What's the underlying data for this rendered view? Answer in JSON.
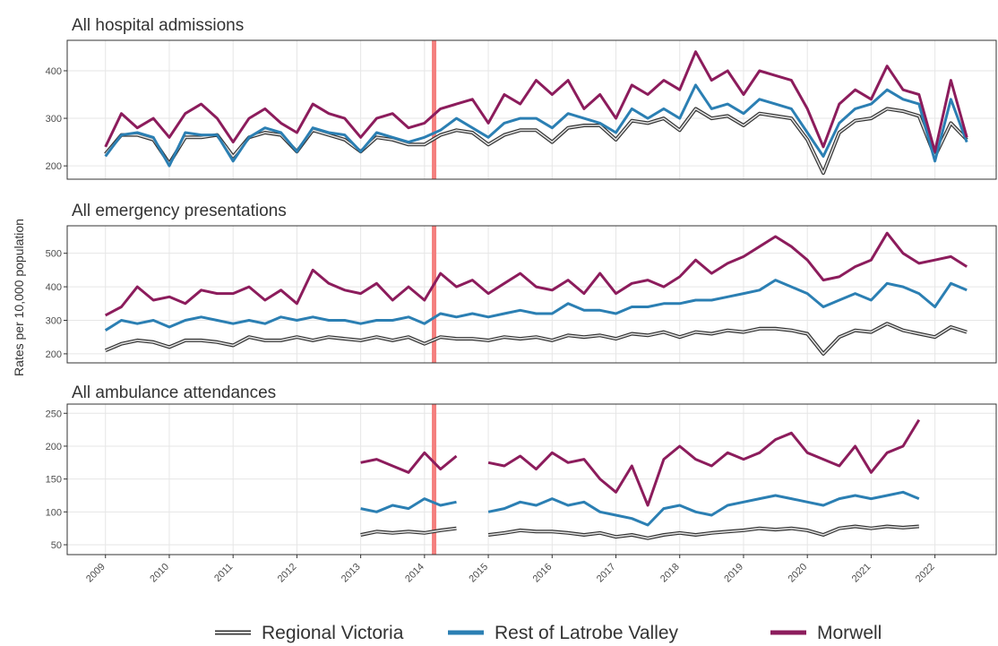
{
  "ylabel": "Rates per 10,000 population",
  "vline": {
    "x": 2014.15,
    "color": "#f4807f"
  },
  "chart_data": [
    {
      "type": "line",
      "title": "All hospital admissions",
      "x": [
        2009,
        2009.25,
        2009.5,
        2009.75,
        2010,
        2010.25,
        2010.5,
        2010.75,
        2011,
        2011.25,
        2011.5,
        2011.75,
        2012,
        2012.25,
        2012.5,
        2012.75,
        2013,
        2013.25,
        2013.5,
        2013.75,
        2014,
        2014.25,
        2014.5,
        2014.75,
        2015,
        2015.25,
        2015.5,
        2015.75,
        2016,
        2016.25,
        2016.5,
        2016.75,
        2017,
        2017.25,
        2017.5,
        2017.75,
        2018,
        2018.25,
        2018.5,
        2018.75,
        2019,
        2019.25,
        2019.5,
        2019.75,
        2020,
        2020.25,
        2020.5,
        2020.75,
        2021,
        2021.25,
        2021.5,
        2021.75,
        2022,
        2022.25,
        2022.5
      ],
      "xlim": [
        2008.4,
        2022.96
      ],
      "xticks": [
        2009,
        2010,
        2011,
        2012,
        2013,
        2014,
        2015,
        2016,
        2017,
        2018,
        2019,
        2020,
        2021,
        2022
      ],
      "ylim": [
        172,
        464
      ],
      "yticks": [
        200,
        300,
        400
      ],
      "grid": true,
      "series": [
        {
          "name": "Regional Victoria",
          "color": "#6b6b6b",
          "style": "double",
          "values": [
            225,
            265,
            265,
            255,
            205,
            260,
            260,
            265,
            220,
            260,
            270,
            265,
            230,
            275,
            265,
            255,
            230,
            260,
            255,
            245,
            245,
            265,
            275,
            270,
            245,
            265,
            275,
            275,
            250,
            280,
            285,
            285,
            255,
            295,
            290,
            300,
            275,
            320,
            300,
            305,
            285,
            310,
            305,
            300,
            255,
            185,
            270,
            295,
            300,
            320,
            315,
            305,
            220,
            290,
            255
          ]
        },
        {
          "name": "Rest of Latrobe Valley",
          "color": "#2b7fb3",
          "values": [
            220,
            265,
            270,
            260,
            200,
            270,
            265,
            265,
            210,
            260,
            280,
            270,
            230,
            280,
            270,
            265,
            230,
            270,
            260,
            250,
            260,
            275,
            300,
            280,
            260,
            290,
            300,
            300,
            280,
            310,
            300,
            290,
            270,
            320,
            300,
            320,
            300,
            370,
            320,
            330,
            310,
            340,
            330,
            320,
            270,
            220,
            290,
            320,
            330,
            360,
            340,
            330,
            210,
            340,
            250
          ]
        },
        {
          "name": "Morwell",
          "color": "#8c1c5c",
          "values": [
            240,
            310,
            280,
            300,
            260,
            310,
            330,
            300,
            250,
            300,
            320,
            290,
            270,
            330,
            310,
            300,
            260,
            300,
            310,
            280,
            290,
            320,
            330,
            340,
            290,
            350,
            330,
            380,
            350,
            380,
            320,
            350,
            300,
            370,
            350,
            380,
            360,
            440,
            380,
            400,
            350,
            400,
            390,
            380,
            320,
            240,
            330,
            360,
            340,
            410,
            360,
            350,
            230,
            380,
            260
          ]
        }
      ]
    },
    {
      "type": "line",
      "title": "All emergency presentations",
      "x": [
        2009,
        2009.25,
        2009.5,
        2009.75,
        2010,
        2010.25,
        2010.5,
        2010.75,
        2011,
        2011.25,
        2011.5,
        2011.75,
        2012,
        2012.25,
        2012.5,
        2012.75,
        2013,
        2013.25,
        2013.5,
        2013.75,
        2014,
        2014.25,
        2014.5,
        2014.75,
        2015,
        2015.25,
        2015.5,
        2015.75,
        2016,
        2016.25,
        2016.5,
        2016.75,
        2017,
        2017.25,
        2017.5,
        2017.75,
        2018,
        2018.25,
        2018.5,
        2018.75,
        2019,
        2019.25,
        2019.5,
        2019.75,
        2020,
        2020.25,
        2020.5,
        2020.75,
        2021,
        2021.25,
        2021.5,
        2021.75,
        2022,
        2022.25,
        2022.5
      ],
      "xlim": [
        2008.4,
        2022.96
      ],
      "xticks": [
        2009,
        2010,
        2011,
        2012,
        2013,
        2014,
        2015,
        2016,
        2017,
        2018,
        2019,
        2020,
        2021,
        2022
      ],
      "ylim": [
        173,
        582
      ],
      "yticks": [
        200,
        300,
        400,
        500
      ],
      "grid": true,
      "series": [
        {
          "name": "Regional Victoria",
          "color": "#6b6b6b",
          "style": "double",
          "values": [
            210,
            230,
            240,
            235,
            220,
            240,
            240,
            235,
            225,
            250,
            240,
            240,
            250,
            240,
            250,
            245,
            240,
            250,
            240,
            250,
            230,
            250,
            245,
            245,
            240,
            250,
            245,
            250,
            240,
            255,
            250,
            255,
            245,
            260,
            255,
            265,
            250,
            265,
            260,
            270,
            265,
            275,
            275,
            270,
            260,
            200,
            250,
            270,
            265,
            290,
            270,
            260,
            250,
            280,
            265
          ]
        },
        {
          "name": "Rest of Latrobe Valley",
          "color": "#2b7fb3",
          "values": [
            270,
            300,
            290,
            300,
            280,
            300,
            310,
            300,
            290,
            300,
            290,
            310,
            300,
            310,
            300,
            300,
            290,
            300,
            300,
            310,
            290,
            320,
            310,
            320,
            310,
            320,
            330,
            320,
            320,
            350,
            330,
            330,
            320,
            340,
            340,
            350,
            350,
            360,
            360,
            370,
            380,
            390,
            420,
            400,
            380,
            340,
            360,
            380,
            360,
            410,
            400,
            380,
            340,
            410,
            390
          ]
        },
        {
          "name": "Morwell",
          "color": "#8c1c5c",
          "values": [
            315,
            340,
            400,
            360,
            370,
            350,
            390,
            380,
            380,
            400,
            360,
            390,
            350,
            450,
            410,
            390,
            380,
            410,
            360,
            400,
            360,
            440,
            400,
            420,
            380,
            410,
            440,
            400,
            390,
            420,
            380,
            440,
            380,
            410,
            420,
            400,
            430,
            480,
            440,
            470,
            490,
            520,
            550,
            520,
            480,
            420,
            430,
            460,
            480,
            560,
            500,
            470,
            480,
            490,
            460
          ]
        }
      ]
    },
    {
      "type": "line",
      "title": "All ambulance attendances",
      "x": [
        2013,
        2013.25,
        2013.5,
        2013.75,
        2014,
        2014.25,
        2014.5,
        2014.75,
        2015,
        2015.25,
        2015.5,
        2015.75,
        2016,
        2016.25,
        2016.5,
        2016.75,
        2017,
        2017.25,
        2017.5,
        2017.75,
        2018,
        2018.25,
        2018.5,
        2018.75,
        2019,
        2019.25,
        2019.5,
        2019.75,
        2020,
        2020.25,
        2020.5,
        2020.75,
        2021,
        2021.25,
        2021.5,
        2021.75
      ],
      "xlim": [
        2008.4,
        2022.96
      ],
      "xticks": [
        2009,
        2010,
        2011,
        2012,
        2013,
        2014,
        2015,
        2016,
        2017,
        2018,
        2019,
        2020,
        2021,
        2022
      ],
      "ylim": [
        35,
        264
      ],
      "yticks": [
        50,
        100,
        150,
        200,
        250
      ],
      "grid": true,
      "series": [
        {
          "name": "Regional Victoria",
          "color": "#6b6b6b",
          "style": "double",
          "values": [
            65,
            70,
            68,
            70,
            68,
            72,
            75,
            null,
            65,
            68,
            72,
            70,
            70,
            68,
            65,
            68,
            62,
            65,
            60,
            65,
            68,
            65,
            68,
            70,
            72,
            75,
            73,
            75,
            72,
            65,
            75,
            78,
            75,
            78,
            76,
            78
          ]
        },
        {
          "name": "Rest of Latrobe Valley",
          "color": "#2b7fb3",
          "values": [
            105,
            100,
            110,
            105,
            120,
            110,
            115,
            null,
            100,
            105,
            115,
            110,
            120,
            110,
            115,
            100,
            95,
            90,
            80,
            105,
            110,
            100,
            95,
            110,
            115,
            120,
            125,
            120,
            115,
            110,
            120,
            125,
            120,
            125,
            130,
            120
          ]
        },
        {
          "name": "Morwell",
          "color": "#8c1c5c",
          "values": [
            175,
            180,
            170,
            160,
            190,
            165,
            185,
            null,
            175,
            170,
            185,
            165,
            190,
            175,
            180,
            150,
            130,
            170,
            110,
            180,
            200,
            180,
            170,
            190,
            180,
            190,
            210,
            220,
            190,
            180,
            170,
            200,
            160,
            190,
            200,
            240
          ]
        }
      ]
    }
  ]
}
